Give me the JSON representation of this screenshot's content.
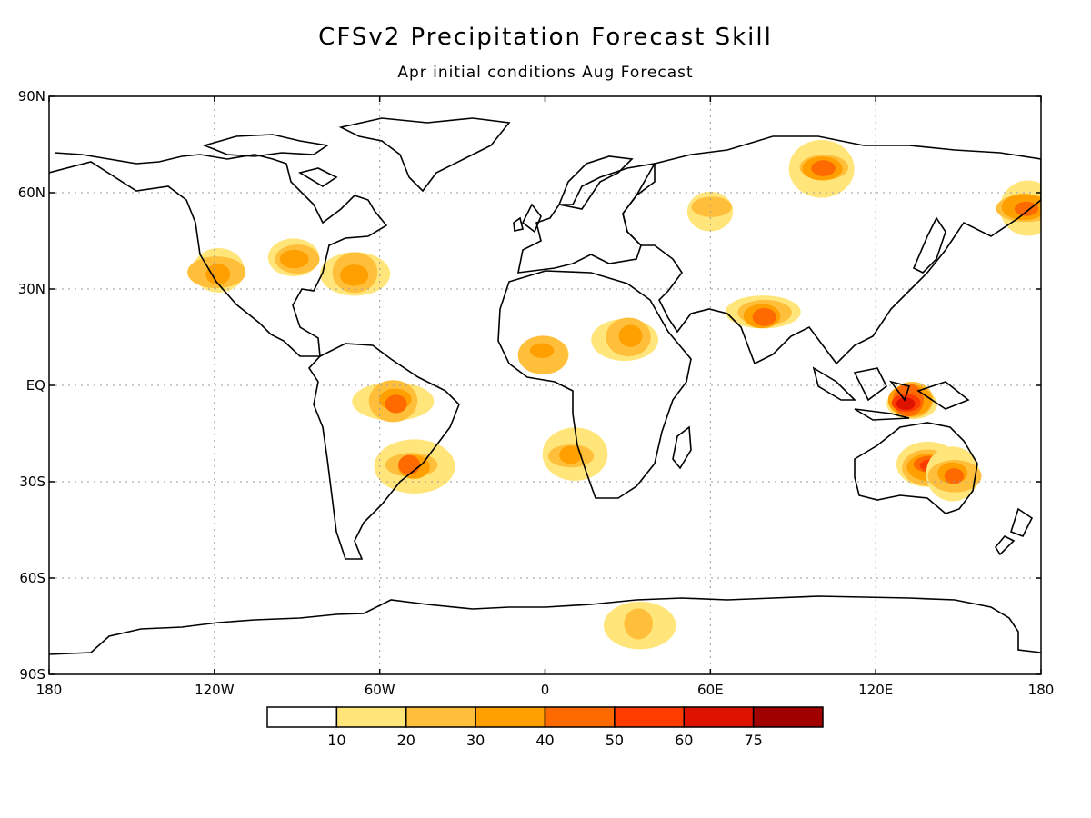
{
  "title": "CFSv2 Precipitation Forecast Skill",
  "subtitle": "Apr initial conditions  Aug Forecast",
  "axes": {
    "lat_ticks": [
      "90N",
      "60N",
      "30N",
      "EQ",
      "30S",
      "60S",
      "90S"
    ],
    "lon_ticks": [
      "180",
      "120W",
      "60W",
      "0",
      "60E",
      "120E",
      "180"
    ],
    "lon_range": [
      -180,
      180
    ],
    "lat_range": [
      -90,
      90
    ],
    "grid": "dotted"
  },
  "colorbar": {
    "labels": [
      "10",
      "20",
      "30",
      "40",
      "50",
      "60",
      "75"
    ],
    "colors": [
      "#ffffff",
      "#ffe57a",
      "#ffbf3a",
      "#ff9f00",
      "#ff6a00",
      "#ff3c00",
      "#dd1300",
      "#a00000"
    ]
  },
  "chart_data": {
    "type": "heatmap",
    "title": "CFSv2 Precipitation Forecast Skill",
    "subtitle": "Apr initial conditions  Aug Forecast",
    "colorbar_thresholds": [
      10,
      20,
      30,
      40,
      50,
      60,
      75
    ],
    "regions": [
      {
        "lon": 140,
        "lat": -25,
        "value": 55
      },
      {
        "lon": 132,
        "lat": -5,
        "value": 60
      },
      {
        "lon": 148,
        "lat": -28,
        "value": 45
      },
      {
        "lon": -55,
        "lat": -5,
        "value": 45
      },
      {
        "lon": -48,
        "lat": -25,
        "value": 40
      },
      {
        "lon": 30,
        "lat": 15,
        "value": 35
      },
      {
        "lon": 0,
        "lat": 10,
        "value": 30
      },
      {
        "lon": 10,
        "lat": -22,
        "value": 30
      },
      {
        "lon": 80,
        "lat": 22,
        "value": 40
      },
      {
        "lon": 35,
        "lat": -75,
        "value": 25
      },
      {
        "lon": -90,
        "lat": 40,
        "value": 30
      },
      {
        "lon": -70,
        "lat": 35,
        "value": 35
      },
      {
        "lon": 100,
        "lat": 68,
        "value": 40
      },
      {
        "lon": 60,
        "lat": 55,
        "value": 25
      },
      {
        "lon": -118,
        "lat": 35,
        "value": 30
      },
      {
        "lon": 175,
        "lat": 55,
        "value": 45
      }
    ]
  }
}
